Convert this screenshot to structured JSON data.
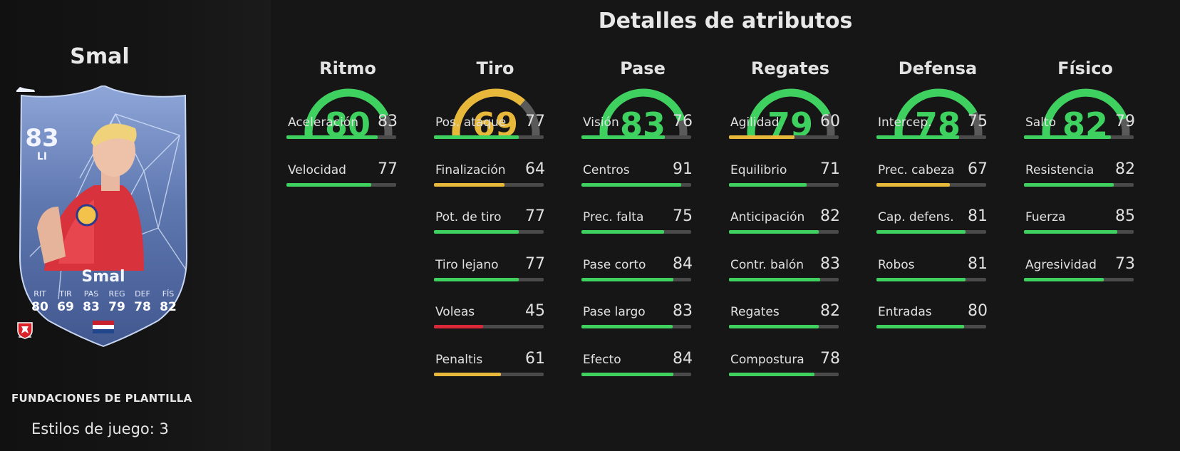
{
  "player": {
    "name": "Smal",
    "rating": "83",
    "position": "LI",
    "card_stats": [
      {
        "label": "RIT",
        "value": "80"
      },
      {
        "label": "TIR",
        "value": "69"
      },
      {
        "label": "PAS",
        "value": "83"
      },
      {
        "label": "REG",
        "value": "79"
      },
      {
        "label": "DEF",
        "value": "78"
      },
      {
        "label": "FÍS",
        "value": "82"
      }
    ],
    "nation_flag": "netherlands-flag",
    "league_icon": "eredivisie-icon",
    "club_icon": "twente-crest-icon"
  },
  "squad_label": "FUNDACIONES DE PLANTILLA",
  "playstyles": "Estilos de juego: 3",
  "title": "Detalles de atributos",
  "colors": {
    "green": "#3fd160",
    "yellow": "#e8b83a",
    "red": "#d8283a",
    "track": "#4a4a4a",
    "gauge_track": "#5a5a5a"
  },
  "categories": [
    {
      "name": "Ritmo",
      "value": 80,
      "color": "#3fd160",
      "attributes": [
        {
          "label": "Aceleración",
          "value": 83
        },
        {
          "label": "Velocidad",
          "value": 77
        }
      ]
    },
    {
      "name": "Tiro",
      "value": 69,
      "color": "#e8b83a",
      "attributes": [
        {
          "label": "Pos. ataque",
          "value": 77
        },
        {
          "label": "Finalización",
          "value": 64
        },
        {
          "label": "Pot. de tiro",
          "value": 77
        },
        {
          "label": "Tiro lejano",
          "value": 77
        },
        {
          "label": "Voleas",
          "value": 45
        },
        {
          "label": "Penaltis",
          "value": 61
        }
      ]
    },
    {
      "name": "Pase",
      "value": 83,
      "color": "#3fd160",
      "attributes": [
        {
          "label": "Visión",
          "value": 76
        },
        {
          "label": "Centros",
          "value": 91
        },
        {
          "label": "Prec. falta",
          "value": 75
        },
        {
          "label": "Pase corto",
          "value": 84
        },
        {
          "label": "Pase largo",
          "value": 83
        },
        {
          "label": "Efecto",
          "value": 84
        }
      ]
    },
    {
      "name": "Regates",
      "value": 79,
      "color": "#3fd160",
      "attributes": [
        {
          "label": "Agilidad",
          "value": 60
        },
        {
          "label": "Equilibrio",
          "value": 71
        },
        {
          "label": "Anticipación",
          "value": 82
        },
        {
          "label": "Contr. balón",
          "value": 83
        },
        {
          "label": "Regates",
          "value": 82
        },
        {
          "label": "Compostura",
          "value": 78
        }
      ]
    },
    {
      "name": "Defensa",
      "value": 78,
      "color": "#3fd160",
      "attributes": [
        {
          "label": "Intercep.",
          "value": 75
        },
        {
          "label": "Prec. cabeza",
          "value": 67
        },
        {
          "label": "Cap. defens.",
          "value": 81
        },
        {
          "label": "Robos",
          "value": 81
        },
        {
          "label": "Entradas",
          "value": 80
        }
      ]
    },
    {
      "name": "Físico",
      "value": 82,
      "color": "#3fd160",
      "attributes": [
        {
          "label": "Salto",
          "value": 79
        },
        {
          "label": "Resistencia",
          "value": 82
        },
        {
          "label": "Fuerza",
          "value": 85
        },
        {
          "label": "Agresividad",
          "value": 73
        }
      ]
    }
  ]
}
